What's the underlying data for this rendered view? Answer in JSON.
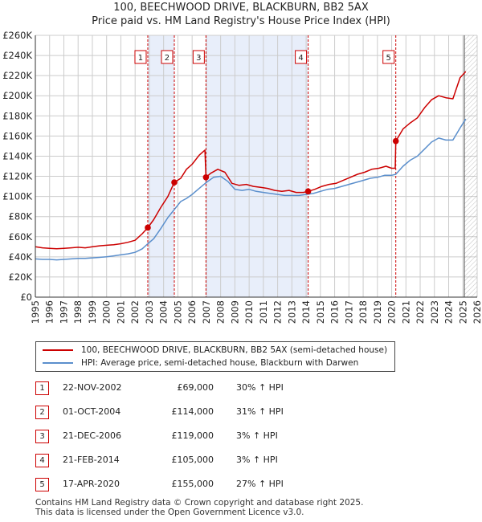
{
  "title_line1": "100, BEECHWOOD DRIVE, BLACKBURN, BB2 5AX",
  "title_line2": "Price paid vs. HM Land Registry's House Price Index (HPI)",
  "colors": {
    "property": "#cc0000",
    "hpi": "#5b8fcc",
    "band": "#e8eefa",
    "vline": "#cc0000",
    "grid": "#cccccc",
    "future_hatch": "#999999"
  },
  "chart_data": {
    "type": "line",
    "title": "Price paid vs. HM Land Registry's House Price Index (HPI)",
    "xlabel": "",
    "ylabel": "",
    "xlim": [
      1995,
      2026
    ],
    "ylim": [
      0,
      260000
    ],
    "yticks": [
      0,
      20000,
      40000,
      60000,
      80000,
      100000,
      120000,
      140000,
      160000,
      180000,
      200000,
      220000,
      240000,
      260000
    ],
    "ytick_labels": [
      "£0",
      "£20K",
      "£40K",
      "£60K",
      "£80K",
      "£100K",
      "£120K",
      "£140K",
      "£160K",
      "£180K",
      "£200K",
      "£220K",
      "£240K",
      "£260K"
    ],
    "xticks": [
      1995,
      1996,
      1997,
      1998,
      1999,
      2000,
      2001,
      2002,
      2003,
      2004,
      2005,
      2006,
      2007,
      2008,
      2009,
      2010,
      2011,
      2012,
      2013,
      2014,
      2015,
      2016,
      2017,
      2018,
      2019,
      2020,
      2021,
      2022,
      2023,
      2024,
      2025,
      2026
    ],
    "xtick_labels": [
      "1995",
      "1996",
      "1997",
      "1998",
      "1999",
      "2000",
      "2001",
      "2002",
      "2003",
      "2004",
      "2005",
      "2006",
      "2007",
      "2008",
      "2009",
      "2010",
      "2011",
      "2012",
      "2013",
      "2014",
      "2015",
      "2016",
      "2017",
      "2018",
      "2019",
      "2020",
      "2021",
      "2022",
      "2023",
      "2024",
      "2025",
      "2026"
    ],
    "grid": true,
    "forecast_start": 2025.1,
    "shaded_bands": [
      [
        2002.89,
        2004.75
      ],
      [
        2006.97,
        2014.14
      ]
    ],
    "series": [
      {
        "name": "100, BEECHWOOD DRIVE, BLACKBURN, BB2 5AX (semi-detached house)",
        "color": "#cc0000",
        "x": [
          1995.0,
          1995.5,
          1996.0,
          1996.5,
          1997.0,
          1997.5,
          1998.0,
          1998.5,
          1999.0,
          1999.5,
          2000.0,
          2000.5,
          2001.0,
          2001.5,
          2002.0,
          2002.5,
          2002.89,
          2003.3,
          2003.8,
          2004.3,
          2004.75,
          2005.2,
          2005.6,
          2006.0,
          2006.5,
          2006.9,
          2006.97,
          2007.3,
          2007.8,
          2008.3,
          2008.8,
          2009.3,
          2009.8,
          2010.3,
          2010.8,
          2011.3,
          2011.8,
          2012.3,
          2012.8,
          2013.3,
          2013.8,
          2014.14,
          2014.6,
          2015.1,
          2015.6,
          2016.1,
          2016.6,
          2017.1,
          2017.6,
          2018.1,
          2018.6,
          2019.1,
          2019.6,
          2020.0,
          2020.25,
          2020.29,
          2020.8,
          2021.3,
          2021.8,
          2022.3,
          2022.8,
          2023.3,
          2023.8,
          2024.3,
          2024.8,
          2025.2
        ],
        "values": [
          50000,
          49000,
          48500,
          48000,
          48500,
          49000,
          49500,
          49000,
          50000,
          51000,
          51500,
          52000,
          53000,
          54500,
          56500,
          63000,
          69000,
          77000,
          89000,
          100000,
          114000,
          118000,
          127000,
          132000,
          141000,
          146000,
          119000,
          123000,
          127000,
          124000,
          113000,
          111000,
          112000,
          110000,
          109000,
          108000,
          106000,
          105000,
          106000,
          104000,
          104000,
          105000,
          107000,
          110000,
          112000,
          113000,
          116000,
          119000,
          122000,
          124000,
          127000,
          128000,
          130000,
          128000,
          128000,
          155000,
          167000,
          173000,
          178000,
          188000,
          196000,
          200000,
          198000,
          197000,
          218000,
          224000
        ]
      },
      {
        "name": "HPI: Average price, semi-detached house, Blackburn with Darwen",
        "color": "#5b8fcc",
        "x": [
          1995.0,
          1995.5,
          1996.0,
          1996.5,
          1997.0,
          1997.5,
          1998.0,
          1998.5,
          1999.0,
          1999.5,
          2000.0,
          2000.5,
          2001.0,
          2001.5,
          2002.0,
          2002.5,
          2002.89,
          2003.3,
          2003.8,
          2004.3,
          2004.75,
          2005.2,
          2005.6,
          2006.0,
          2006.5,
          2007.0,
          2007.5,
          2008.0,
          2008.5,
          2009.0,
          2009.5,
          2010.0,
          2010.5,
          2011.0,
          2011.5,
          2012.0,
          2012.5,
          2013.0,
          2013.5,
          2014.0,
          2014.5,
          2015.0,
          2015.5,
          2016.0,
          2016.5,
          2017.0,
          2017.5,
          2018.0,
          2018.5,
          2019.0,
          2019.5,
          2020.0,
          2020.29,
          2020.8,
          2021.3,
          2021.8,
          2022.3,
          2022.8,
          2023.3,
          2023.8,
          2024.3,
          2024.8,
          2025.2
        ],
        "values": [
          38000,
          37500,
          37500,
          37000,
          37500,
          38000,
          38500,
          38500,
          39000,
          39500,
          40000,
          41000,
          42000,
          43000,
          44500,
          48000,
          53000,
          58000,
          68000,
          79000,
          87000,
          95000,
          98000,
          102000,
          108000,
          114000,
          119000,
          120000,
          115000,
          107000,
          106000,
          107000,
          105000,
          104000,
          103000,
          102000,
          101000,
          101000,
          101000,
          102000,
          103000,
          105000,
          107000,
          108000,
          110000,
          112000,
          114000,
          116000,
          118000,
          119000,
          121000,
          121000,
          122000,
          130000,
          136000,
          140000,
          147000,
          154000,
          158000,
          156000,
          156000,
          168000,
          177000
        ]
      }
    ],
    "sales": [
      {
        "label": "1",
        "x": 2002.89,
        "value": 69000
      },
      {
        "label": "2",
        "x": 2004.75,
        "value": 114000
      },
      {
        "label": "3",
        "x": 2006.97,
        "value": 119000
      },
      {
        "label": "4",
        "x": 2014.14,
        "value": 105000
      },
      {
        "label": "5",
        "x": 2020.29,
        "value": 155000
      }
    ]
  },
  "legend": {
    "property_label": "100, BEECHWOOD DRIVE, BLACKBURN, BB2 5AX (semi-detached house)",
    "hpi_label": "HPI: Average price, semi-detached house, Blackburn with Darwen"
  },
  "transactions": [
    {
      "num": "1",
      "date": "22-NOV-2002",
      "price": "£69,000",
      "hpi": "30% ↑ HPI"
    },
    {
      "num": "2",
      "date": "01-OCT-2004",
      "price": "£114,000",
      "hpi": "31% ↑ HPI"
    },
    {
      "num": "3",
      "date": "21-DEC-2006",
      "price": "£119,000",
      "hpi": "3% ↑ HPI"
    },
    {
      "num": "4",
      "date": "21-FEB-2014",
      "price": "£105,000",
      "hpi": "3% ↑ HPI"
    },
    {
      "num": "5",
      "date": "17-APR-2020",
      "price": "£155,000",
      "hpi": "27% ↑ HPI"
    }
  ],
  "footer_line1": "Contains HM Land Registry data © Crown copyright and database right 2025.",
  "footer_line2": "This data is licensed under the Open Government Licence v3.0."
}
